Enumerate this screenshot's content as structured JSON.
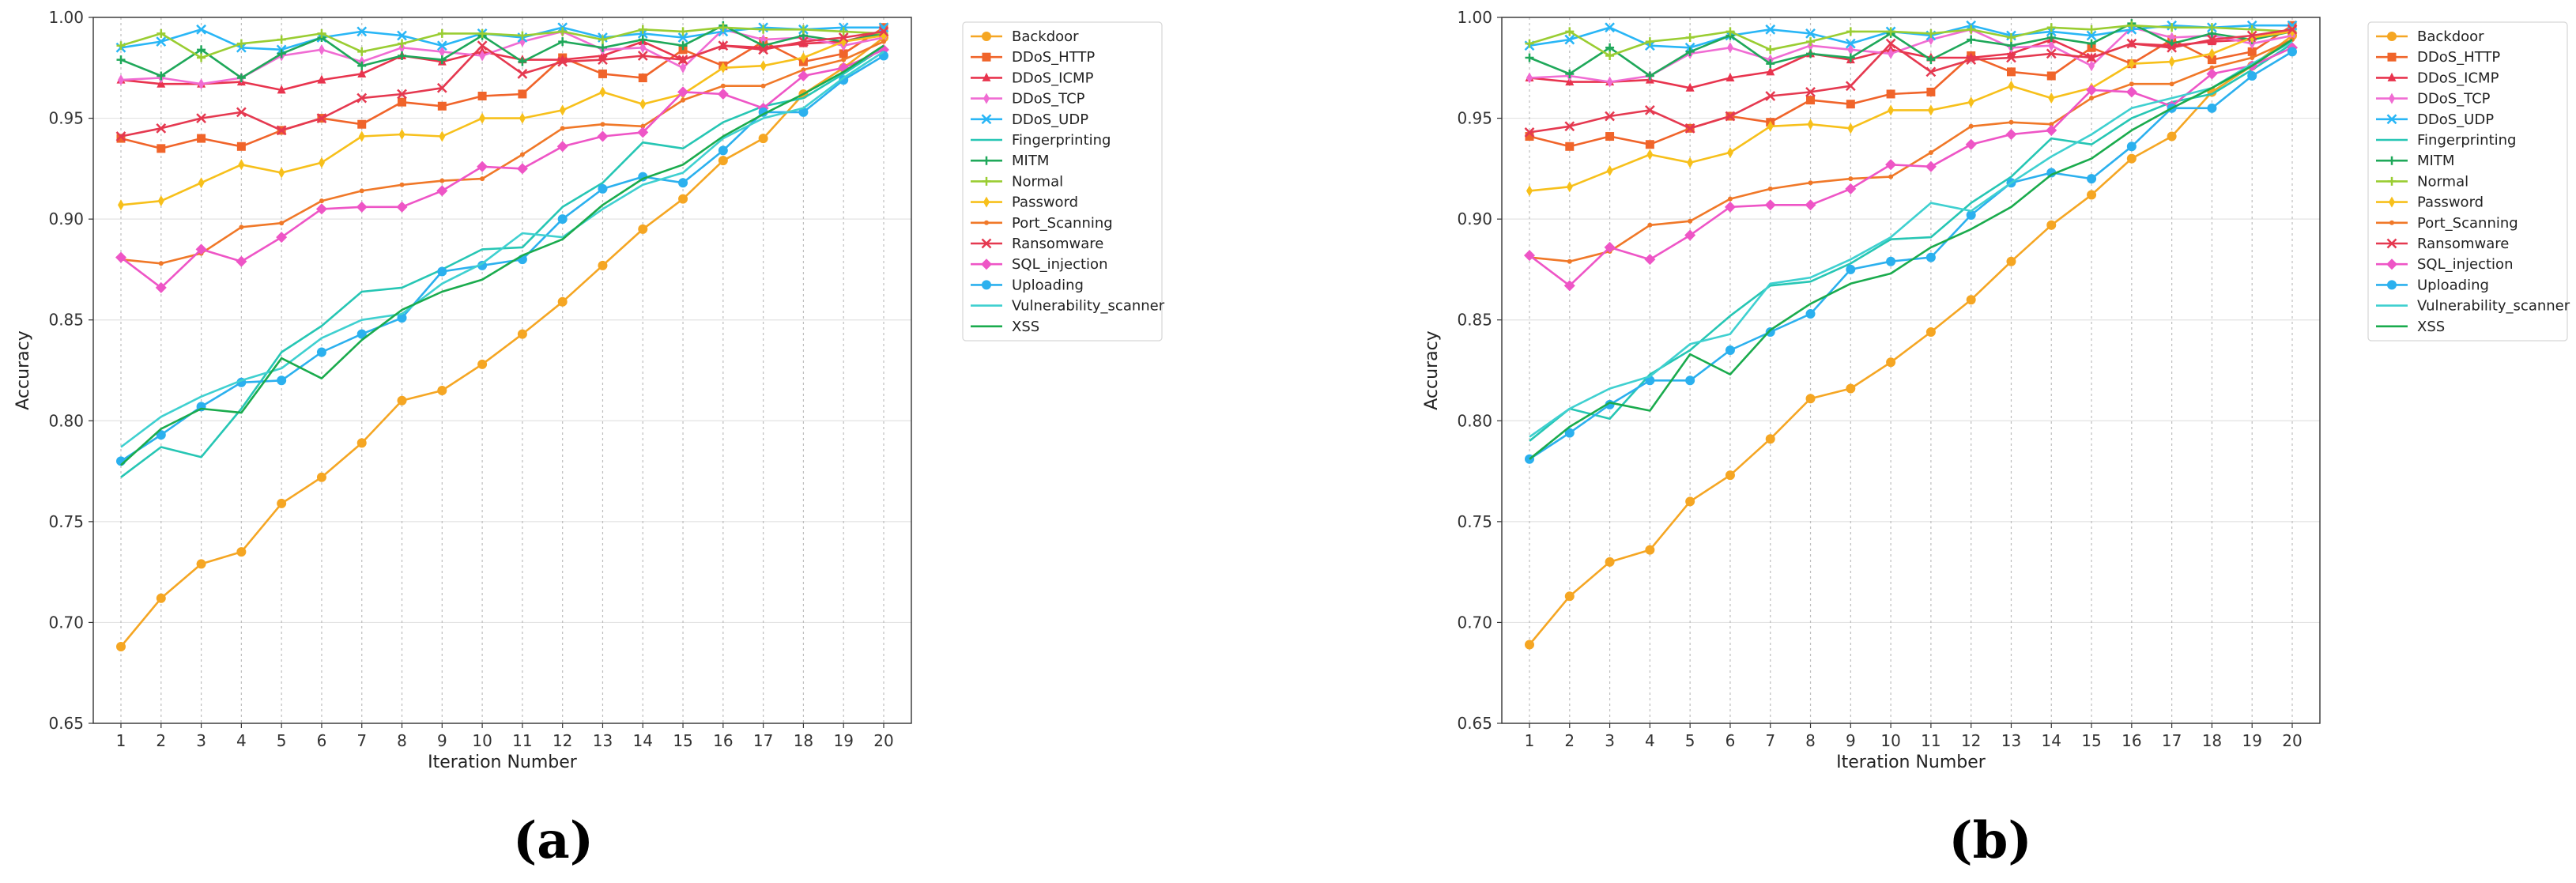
{
  "chart_data": [
    {
      "type": "line",
      "panel_label": "(a)",
      "xlabel": "Iteration Number",
      "ylabel": "Accuracy",
      "xlim": [
        1,
        20
      ],
      "ylim": [
        0.65,
        1.0
      ],
      "y_ticks": [
        "0.65",
        "0.70",
        "0.75",
        "0.80",
        "0.85",
        "0.90",
        "0.95",
        "1.00"
      ],
      "x_ticks": [
        "1",
        "2",
        "3",
        "4",
        "5",
        "6",
        "7",
        "8",
        "9",
        "10",
        "11",
        "12",
        "13",
        "14",
        "15",
        "16",
        "17",
        "18",
        "19",
        "20"
      ],
      "grid": true,
      "legend_position": "outside-right",
      "series": [
        {
          "name": "Backdoor",
          "color": "#f5a623",
          "marker": "circle",
          "values": [
            0.688,
            0.712,
            0.729,
            0.735,
            0.759,
            0.772,
            0.789,
            0.81,
            0.815,
            0.828,
            0.843,
            0.859,
            0.877,
            0.895,
            0.91,
            0.929,
            0.94,
            0.962,
            0.975,
            0.99
          ]
        },
        {
          "name": "DDoS_HTTP",
          "color": "#f0642a",
          "marker": "square",
          "values": [
            0.94,
            0.935,
            0.94,
            0.936,
            0.944,
            0.95,
            0.947,
            0.958,
            0.956,
            0.961,
            0.962,
            0.98,
            0.972,
            0.97,
            0.984,
            0.976,
            0.988,
            0.978,
            0.982,
            0.995
          ]
        },
        {
          "name": "DDoS_ICMP",
          "color": "#e8344e",
          "marker": "triangle",
          "values": [
            0.969,
            0.967,
            0.967,
            0.968,
            0.964,
            0.969,
            0.972,
            0.981,
            0.978,
            0.983,
            0.979,
            0.979,
            0.981,
            0.988,
            0.979,
            0.986,
            0.985,
            0.987,
            0.988,
            0.993
          ]
        },
        {
          "name": "DDoS_TCP",
          "color": "#f06cd3",
          "marker": "thin_diamond",
          "values": [
            0.969,
            0.97,
            0.967,
            0.97,
            0.981,
            0.984,
            0.978,
            0.985,
            0.983,
            0.981,
            0.988,
            0.993,
            0.984,
            0.985,
            0.975,
            0.994,
            0.989,
            0.99,
            0.986,
            0.99
          ]
        },
        {
          "name": "DDoS_UDP",
          "color": "#29b6f6",
          "marker": "x",
          "values": [
            0.985,
            0.988,
            0.994,
            0.985,
            0.984,
            0.99,
            0.993,
            0.991,
            0.986,
            0.992,
            0.99,
            0.995,
            0.99,
            0.992,
            0.99,
            0.993,
            0.995,
            0.994,
            0.995,
            0.995
          ]
        },
        {
          "name": "Fingerprinting",
          "color": "#26c6b4",
          "marker": "none",
          "values": [
            0.772,
            0.787,
            0.782,
            0.806,
            0.834,
            0.847,
            0.864,
            0.866,
            0.875,
            0.885,
            0.886,
            0.906,
            0.918,
            0.938,
            0.935,
            0.948,
            0.956,
            0.96,
            0.972,
            0.985
          ]
        },
        {
          "name": "MITM",
          "color": "#1fa85a",
          "marker": "plus",
          "values": [
            0.979,
            0.971,
            0.984,
            0.97,
            0.982,
            0.99,
            0.976,
            0.981,
            0.979,
            0.991,
            0.978,
            0.988,
            0.985,
            0.989,
            0.986,
            0.996,
            0.986,
            0.991,
            0.988,
            0.992
          ]
        },
        {
          "name": "Normal",
          "color": "#9acd32",
          "marker": "plus",
          "values": [
            0.986,
            0.992,
            0.98,
            0.987,
            0.989,
            0.992,
            0.983,
            0.987,
            0.992,
            0.992,
            0.991,
            0.993,
            0.989,
            0.994,
            0.993,
            0.995,
            0.994,
            0.994,
            0.993,
            0.992
          ]
        },
        {
          "name": "Password",
          "color": "#f7c01b",
          "marker": "thin_diamond",
          "values": [
            0.907,
            0.909,
            0.918,
            0.927,
            0.923,
            0.928,
            0.941,
            0.942,
            0.941,
            0.95,
            0.95,
            0.954,
            0.963,
            0.957,
            0.962,
            0.975,
            0.976,
            0.98,
            0.988,
            0.991
          ]
        },
        {
          "name": "Port_Scanning",
          "color": "#f07828",
          "marker": "dot",
          "values": [
            0.88,
            0.878,
            0.883,
            0.896,
            0.898,
            0.909,
            0.914,
            0.917,
            0.919,
            0.92,
            0.932,
            0.945,
            0.947,
            0.946,
            0.959,
            0.966,
            0.966,
            0.974,
            0.979,
            0.988
          ]
        },
        {
          "name": "Ransomware",
          "color": "#e53950",
          "marker": "x",
          "values": [
            0.941,
            0.945,
            0.95,
            0.953,
            0.944,
            0.95,
            0.96,
            0.962,
            0.965,
            0.986,
            0.972,
            0.978,
            0.979,
            0.981,
            0.979,
            0.986,
            0.984,
            0.988,
            0.99,
            0.993
          ]
        },
        {
          "name": "SQL_injection",
          "color": "#ee55c6",
          "marker": "diamond",
          "values": [
            0.881,
            0.866,
            0.885,
            0.879,
            0.891,
            0.905,
            0.906,
            0.906,
            0.914,
            0.926,
            0.925,
            0.936,
            0.941,
            0.943,
            0.963,
            0.962,
            0.955,
            0.971,
            0.975,
            0.984
          ]
        },
        {
          "name": "Uploading",
          "color": "#2bb0ee",
          "marker": "circle",
          "values": [
            0.78,
            0.793,
            0.807,
            0.819,
            0.82,
            0.834,
            0.843,
            0.851,
            0.874,
            0.877,
            0.88,
            0.9,
            0.915,
            0.921,
            0.918,
            0.934,
            0.953,
            0.953,
            0.969,
            0.981
          ]
        },
        {
          "name": "Vulnerability_scanner",
          "color": "#3fd0d0",
          "marker": "none",
          "values": [
            0.787,
            0.802,
            0.812,
            0.82,
            0.826,
            0.841,
            0.85,
            0.853,
            0.868,
            0.878,
            0.893,
            0.891,
            0.905,
            0.917,
            0.923,
            0.94,
            0.95,
            0.955,
            0.97,
            0.983
          ]
        },
        {
          "name": "XSS",
          "color": "#1aab4d",
          "marker": "none",
          "values": [
            0.778,
            0.796,
            0.806,
            0.804,
            0.831,
            0.821,
            0.84,
            0.855,
            0.864,
            0.87,
            0.882,
            0.89,
            0.907,
            0.92,
            0.927,
            0.941,
            0.952,
            0.962,
            0.973,
            0.986
          ]
        }
      ]
    },
    {
      "type": "line",
      "panel_label": "(b)",
      "xlabel": "Iteration Number",
      "ylabel": "Accuracy",
      "xlim": [
        1,
        20
      ],
      "ylim": [
        0.65,
        1.0
      ],
      "y_ticks": [
        "0.65",
        "0.70",
        "0.75",
        "0.80",
        "0.85",
        "0.90",
        "0.95",
        "1.00"
      ],
      "x_ticks": [
        "1",
        "2",
        "3",
        "4",
        "5",
        "6",
        "7",
        "8",
        "9",
        "10",
        "11",
        "12",
        "13",
        "14",
        "15",
        "16",
        "17",
        "18",
        "19",
        "20"
      ],
      "grid": true,
      "legend_position": "outside-right",
      "series": [
        {
          "name": "Backdoor",
          "color": "#f5a623",
          "marker": "circle",
          "values": [
            0.689,
            0.713,
            0.73,
            0.736,
            0.76,
            0.773,
            0.791,
            0.811,
            0.816,
            0.829,
            0.844,
            0.86,
            0.879,
            0.897,
            0.912,
            0.93,
            0.941,
            0.963,
            0.976,
            0.991
          ]
        },
        {
          "name": "DDoS_HTTP",
          "color": "#f0642a",
          "marker": "square",
          "values": [
            0.941,
            0.936,
            0.941,
            0.937,
            0.945,
            0.951,
            0.948,
            0.959,
            0.957,
            0.962,
            0.963,
            0.981,
            0.973,
            0.971,
            0.985,
            0.977,
            0.989,
            0.979,
            0.983,
            0.996
          ]
        },
        {
          "name": "DDoS_ICMP",
          "color": "#e8344e",
          "marker": "triangle",
          "values": [
            0.97,
            0.968,
            0.968,
            0.969,
            0.965,
            0.97,
            0.973,
            0.982,
            0.979,
            0.984,
            0.98,
            0.98,
            0.982,
            0.989,
            0.98,
            0.987,
            0.986,
            0.988,
            0.989,
            0.994
          ]
        },
        {
          "name": "DDoS_TCP",
          "color": "#f06cd3",
          "marker": "thin_diamond",
          "values": [
            0.97,
            0.971,
            0.968,
            0.971,
            0.982,
            0.985,
            0.979,
            0.986,
            0.984,
            0.982,
            0.989,
            0.994,
            0.985,
            0.986,
            0.976,
            0.995,
            0.99,
            0.991,
            0.987,
            0.991
          ]
        },
        {
          "name": "DDoS_UDP",
          "color": "#29b6f6",
          "marker": "x",
          "values": [
            0.986,
            0.989,
            0.995,
            0.986,
            0.985,
            0.991,
            0.994,
            0.992,
            0.987,
            0.993,
            0.991,
            0.996,
            0.991,
            0.993,
            0.991,
            0.994,
            0.996,
            0.995,
            0.996,
            0.996
          ]
        },
        {
          "name": "Fingerprinting",
          "color": "#26c6b4",
          "marker": "none",
          "values": [
            0.79,
            0.806,
            0.801,
            0.823,
            0.835,
            0.852,
            0.867,
            0.869,
            0.878,
            0.89,
            0.891,
            0.908,
            0.921,
            0.94,
            0.937,
            0.95,
            0.958,
            0.962,
            0.974,
            0.987
          ]
        },
        {
          "name": "MITM",
          "color": "#1fa85a",
          "marker": "plus",
          "values": [
            0.98,
            0.972,
            0.985,
            0.971,
            0.983,
            0.991,
            0.977,
            0.982,
            0.98,
            0.992,
            0.979,
            0.989,
            0.986,
            0.99,
            0.987,
            0.997,
            0.987,
            0.992,
            0.989,
            0.993
          ]
        },
        {
          "name": "Normal",
          "color": "#9acd32",
          "marker": "plus",
          "values": [
            0.987,
            0.993,
            0.981,
            0.988,
            0.99,
            0.993,
            0.984,
            0.988,
            0.993,
            0.993,
            0.992,
            0.994,
            0.99,
            0.995,
            0.994,
            0.996,
            0.995,
            0.995,
            0.994,
            0.993
          ]
        },
        {
          "name": "Password",
          "color": "#f7c01b",
          "marker": "thin_diamond",
          "values": [
            0.914,
            0.916,
            0.924,
            0.932,
            0.928,
            0.933,
            0.946,
            0.947,
            0.945,
            0.954,
            0.954,
            0.958,
            0.966,
            0.96,
            0.965,
            0.977,
            0.978,
            0.982,
            0.99,
            0.993
          ]
        },
        {
          "name": "Port_Scanning",
          "color": "#f07828",
          "marker": "dot",
          "values": [
            0.881,
            0.879,
            0.884,
            0.897,
            0.899,
            0.91,
            0.915,
            0.918,
            0.92,
            0.921,
            0.933,
            0.946,
            0.948,
            0.947,
            0.96,
            0.967,
            0.967,
            0.975,
            0.98,
            0.989
          ]
        },
        {
          "name": "Ransomware",
          "color": "#e53950",
          "marker": "x",
          "values": [
            0.943,
            0.946,
            0.951,
            0.954,
            0.945,
            0.951,
            0.961,
            0.963,
            0.966,
            0.987,
            0.973,
            0.979,
            0.98,
            0.982,
            0.98,
            0.987,
            0.985,
            0.989,
            0.991,
            0.994
          ]
        },
        {
          "name": "SQL_injection",
          "color": "#ee55c6",
          "marker": "diamond",
          "values": [
            0.882,
            0.867,
            0.886,
            0.88,
            0.892,
            0.906,
            0.907,
            0.907,
            0.915,
            0.927,
            0.926,
            0.937,
            0.942,
            0.944,
            0.964,
            0.963,
            0.956,
            0.972,
            0.976,
            0.985
          ]
        },
        {
          "name": "Uploading",
          "color": "#2bb0ee",
          "marker": "circle",
          "values": [
            0.781,
            0.794,
            0.808,
            0.82,
            0.82,
            0.835,
            0.844,
            0.853,
            0.875,
            0.879,
            0.881,
            0.902,
            0.918,
            0.923,
            0.92,
            0.936,
            0.955,
            0.955,
            0.971,
            0.983
          ]
        },
        {
          "name": "Vulnerability_scanner",
          "color": "#3fd0d0",
          "marker": "none",
          "values": [
            0.792,
            0.806,
            0.816,
            0.822,
            0.838,
            0.843,
            0.868,
            0.871,
            0.88,
            0.891,
            0.908,
            0.904,
            0.918,
            0.931,
            0.942,
            0.955,
            0.96,
            0.965,
            0.977,
            0.988
          ]
        },
        {
          "name": "XSS",
          "color": "#1aab4d",
          "marker": "none",
          "values": [
            0.781,
            0.797,
            0.809,
            0.805,
            0.833,
            0.823,
            0.845,
            0.858,
            0.868,
            0.873,
            0.886,
            0.895,
            0.906,
            0.922,
            0.93,
            0.944,
            0.955,
            0.965,
            0.976,
            0.989
          ]
        }
      ]
    }
  ]
}
